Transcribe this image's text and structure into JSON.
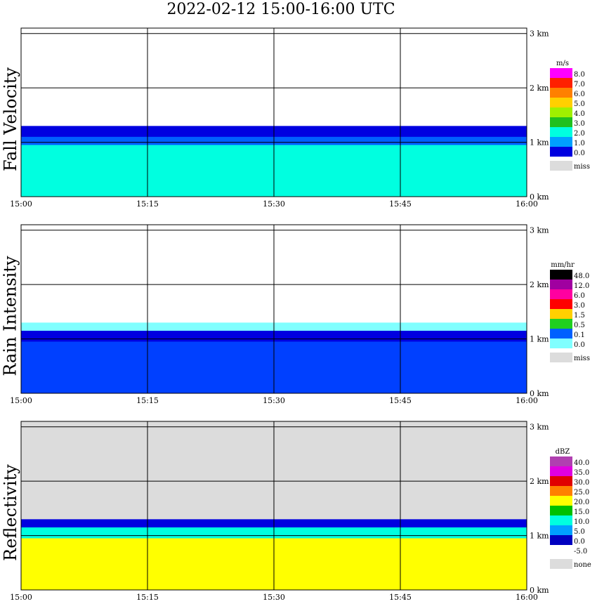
{
  "title": "2022-02-12   15:00-16:00 UTC",
  "time_ticks": [
    "15:00",
    "15:15",
    "15:30",
    "15:45",
    "16:00"
  ],
  "height_ticks": [
    "0 km",
    "1 km",
    "2 km",
    "3 km"
  ],
  "chart_data": [
    {
      "type": "heatmap",
      "title": "Fall Velocity",
      "x_range": [
        "15:00",
        "16:00"
      ],
      "y_range_km": [
        0,
        3.1
      ],
      "grid": true,
      "legend_position": "right",
      "legend": {
        "unit": "m/s",
        "levels": [
          "8.0",
          "7.0",
          "6.0",
          "5.0",
          "4.0",
          "3.0",
          "2.0",
          "1.0",
          "0.0"
        ],
        "colors": [
          "#ff00ff",
          "#ff2000",
          "#ff8000",
          "#ffd000",
          "#a0f000",
          "#20c020",
          "#00ffe0",
          "#00a0ff",
          "#0000e0"
        ],
        "missing_label": "miss",
        "missing_color": "#dcdcdc"
      },
      "layers": [
        {
          "name": "echo top band",
          "top_km": 1.3,
          "color": "#0000e0"
        },
        {
          "name": "upper mid band",
          "top_km": 1.1,
          "color": "#0060ff"
        },
        {
          "name": "lower column",
          "top_km": 0.95,
          "color": "#00ffe0"
        }
      ]
    },
    {
      "type": "heatmap",
      "title": "Rain Intensity",
      "x_range": [
        "15:00",
        "16:00"
      ],
      "y_range_km": [
        0,
        3.1
      ],
      "grid": true,
      "legend_position": "right",
      "legend": {
        "unit": "mm/hr",
        "levels": [
          "48.0",
          "12.0",
          "6.0",
          "3.0",
          "1.5",
          "0.5",
          "0.1",
          "0.0"
        ],
        "colors": [
          "#000000",
          "#a000a0",
          "#ff00a0",
          "#ff0000",
          "#ffd000",
          "#20d020",
          "#0060ff",
          "#80ffff"
        ],
        "missing_label": "miss",
        "missing_color": "#dcdcdc"
      },
      "layers": [
        {
          "name": "echo top band",
          "top_km": 1.3,
          "color": "#80ffff"
        },
        {
          "name": "bright band",
          "top_km": 1.15,
          "color": "#0000e0"
        },
        {
          "name": "lower column",
          "top_km": 0.95,
          "color": "#0040ff"
        }
      ]
    },
    {
      "type": "heatmap",
      "title": "Reflectivity",
      "x_range": [
        "15:00",
        "16:00"
      ],
      "y_range_km": [
        0,
        3.1
      ],
      "grid": true,
      "legend_position": "right",
      "legend": {
        "unit": "dBZ",
        "levels": [
          "40.0",
          "35.0",
          "30.0",
          "25.0",
          "20.0",
          "15.0",
          "10.0",
          "5.0",
          "0.0",
          "-5.0"
        ],
        "colors": [
          "#b040b0",
          "#e000e0",
          "#e00000",
          "#ff8000",
          "#ffff00",
          "#00c000",
          "#00ffe0",
          "#00a0ff",
          "#0000c0",
          "#ffffff"
        ],
        "missing_label": "none",
        "missing_color": "#dcdcdc"
      },
      "layers": [
        {
          "name": "echo top band",
          "top_km": 1.3,
          "color": "#0000e0"
        },
        {
          "name": "upper band",
          "top_km": 1.15,
          "color": "#00ffe0"
        },
        {
          "name": "lower column",
          "top_km": 0.95,
          "color": "#ffff00"
        }
      ]
    }
  ]
}
